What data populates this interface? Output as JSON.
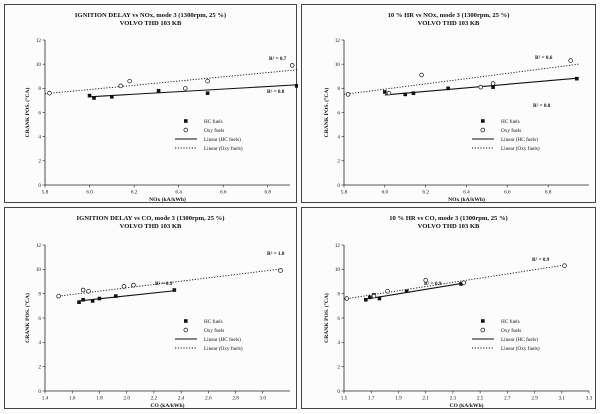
{
  "chart_data": [
    {
      "type": "scatter",
      "title": "IGNITION DELAY vs NOx, mode 3 (1300rpm, 25 %)",
      "subtitle": "VOLVO THD 103 KB",
      "xlabel": "NOx (kA/kWh)",
      "ylabel": "CRANK POS. (°CA)",
      "xlim": [
        5.8,
        6.9
      ],
      "ylim": [
        0,
        12
      ],
      "xticks": [
        "5.8",
        "6.0",
        "6.2",
        "6.4",
        "6.6",
        "6.8"
      ],
      "yticks": [
        "0",
        "2",
        "4",
        "6",
        "8",
        "10",
        "12"
      ],
      "grid": false,
      "legend_position": "bottom-right",
      "series": [
        {
          "name": "HC fuels",
          "marker": "square",
          "x": [
            6.0,
            6.02,
            6.1,
            6.31,
            6.53,
            6.93
          ],
          "y": [
            7.4,
            7.2,
            7.3,
            7.8,
            7.6,
            8.2
          ]
        },
        {
          "name": "Oxy fuels",
          "marker": "circle",
          "x": [
            5.82,
            6.14,
            6.18,
            6.43,
            6.53,
            6.91
          ],
          "y": [
            7.6,
            8.2,
            8.6,
            8.0,
            8.6,
            9.9
          ]
        }
      ],
      "trendlines": [
        {
          "name": "Linear (HC fuels)",
          "style": "solid",
          "x": [
            6.0,
            6.94
          ],
          "y": [
            7.3,
            8.3
          ],
          "r2_label": "R² = 0.8"
        },
        {
          "name": "Linear (Oxy fuels)",
          "style": "dotted",
          "x": [
            5.8,
            6.94
          ],
          "y": [
            7.55,
            9.55
          ],
          "r2_label": "R² = 0.7"
        }
      ]
    },
    {
      "type": "scatter",
      "title": "10 % HR vs NOx, mode 3 (1300rpm, 25 %)",
      "subtitle": "VOLVO THD 103 KB",
      "xlabel": "NOx (kA/kWh)",
      "ylabel": "CRANK POS. (°CA)",
      "xlim": [
        5.8,
        7.0
      ],
      "ylim": [
        0,
        12
      ],
      "xticks": [
        "5.8",
        "6.0",
        "6.2",
        "6.4",
        "6.6",
        "6.8"
      ],
      "yticks": [
        "0",
        "2",
        "4",
        "6",
        "8",
        "10",
        "12"
      ],
      "grid": false,
      "legend_position": "bottom-right",
      "series": [
        {
          "name": "HC fuels",
          "marker": "square",
          "x": [
            6.0,
            6.1,
            6.14,
            6.31,
            6.53,
            6.94
          ],
          "y": [
            7.7,
            7.5,
            7.6,
            8.0,
            8.1,
            8.8
          ]
        },
        {
          "name": "Oxy fuels",
          "marker": "circle",
          "x": [
            5.82,
            6.02,
            6.18,
            6.47,
            6.53,
            6.91
          ],
          "y": [
            7.5,
            7.6,
            9.1,
            8.1,
            8.4,
            10.3
          ]
        }
      ],
      "trendlines": [
        {
          "name": "Linear (HC fuels)",
          "style": "solid",
          "x": [
            6.0,
            6.95
          ],
          "y": [
            7.45,
            8.85
          ],
          "r2_label": "R² = 0.8"
        },
        {
          "name": "Linear (Oxy fuels)",
          "style": "dotted",
          "x": [
            5.8,
            6.95
          ],
          "y": [
            7.5,
            10.0
          ],
          "r2_label": "R² = 0.6"
        }
      ]
    },
    {
      "type": "scatter",
      "title": "IGNITION DELAY vs CO, mode 3 (1300rpm, 25 %)",
      "subtitle": "VOLVO THD 103 KB",
      "xlabel": "CO (kA/kWh)",
      "ylabel": "CRANK POS. (°CA)",
      "xlim": [
        1.4,
        3.2
      ],
      "ylim": [
        0,
        12
      ],
      "xticks": [
        "1.4",
        "1.6",
        "1.8",
        "2.0",
        "2.2",
        "2.4",
        "2.6",
        "2.8",
        "3.0"
      ],
      "yticks": [
        "0",
        "2",
        "4",
        "6",
        "8",
        "10",
        "12"
      ],
      "grid": false,
      "legend_position": "bottom-right",
      "series": [
        {
          "name": "HC fuels",
          "marker": "square",
          "x": [
            1.65,
            1.68,
            1.75,
            1.8,
            1.92,
            2.35
          ],
          "y": [
            7.3,
            7.5,
            7.4,
            7.6,
            7.8,
            8.3
          ]
        },
        {
          "name": "Oxy fuels",
          "marker": "circle",
          "x": [
            1.5,
            1.68,
            1.72,
            1.98,
            2.05,
            3.13
          ],
          "y": [
            7.8,
            8.3,
            8.2,
            8.6,
            8.7,
            9.9
          ]
        }
      ],
      "trendlines": [
        {
          "name": "Linear (HC fuels)",
          "style": "solid",
          "x": [
            1.65,
            2.36
          ],
          "y": [
            7.4,
            8.25
          ],
          "r2_label": "R² = 0.9"
        },
        {
          "name": "Linear (Oxy fuels)",
          "style": "dotted",
          "x": [
            1.5,
            3.15
          ],
          "y": [
            7.8,
            10.05
          ],
          "r2_label": "R² = 1.0"
        }
      ]
    },
    {
      "type": "scatter",
      "title": "10 % HR vs CO, mode 3 (1300rpm, 25 %)",
      "subtitle": "VOLVO THD 103 KB",
      "xlabel": "CO (kA/kWh)",
      "ylabel": "CRANK POS. (°CA)",
      "xlim": [
        1.5,
        3.3
      ],
      "ylim": [
        0,
        12
      ],
      "xticks": [
        "1.5",
        "1.7",
        "1.9",
        "2.1",
        "2.3",
        "2.5",
        "2.7",
        "2.9",
        "3.1",
        "3.3"
      ],
      "yticks": [
        "0",
        "2",
        "4",
        "6",
        "8",
        "10",
        "12"
      ],
      "grid": false,
      "legend_position": "bottom-right",
      "series": [
        {
          "name": "HC fuels",
          "marker": "square",
          "x": [
            1.66,
            1.69,
            1.72,
            1.76,
            1.96,
            2.36
          ],
          "y": [
            7.5,
            7.7,
            7.9,
            7.6,
            8.2,
            8.8
          ]
        },
        {
          "name": "Oxy fuels",
          "marker": "circle",
          "x": [
            1.52,
            1.72,
            1.82,
            2.1,
            2.38,
            3.12
          ],
          "y": [
            7.6,
            7.8,
            8.2,
            9.1,
            8.9,
            10.3
          ]
        }
      ],
      "trendlines": [
        {
          "name": "Linear (HC fuels)",
          "style": "solid",
          "x": [
            1.66,
            2.37
          ],
          "y": [
            7.55,
            8.85
          ],
          "r2_label": "R² = 0.9"
        },
        {
          "name": "Linear (Oxy fuels)",
          "style": "dotted",
          "x": [
            1.5,
            3.12
          ],
          "y": [
            7.55,
            10.35
          ],
          "r2_label": "R² = 0.9"
        }
      ]
    }
  ]
}
